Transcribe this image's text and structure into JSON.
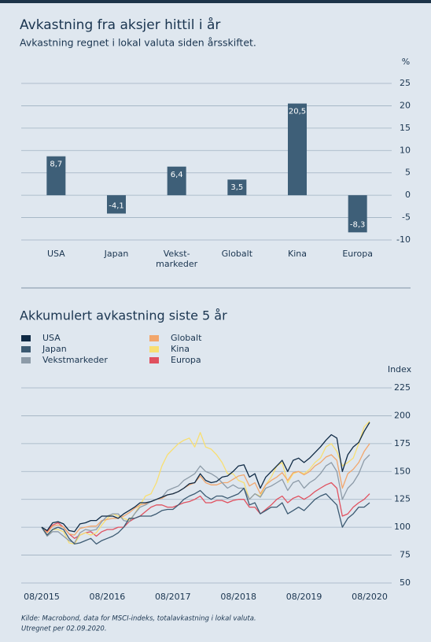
{
  "chart_data": [
    {
      "type": "bar",
      "title": "Avkastning fra aksjer hittil i år",
      "subtitle": "Avkastning regnet i lokal valuta siden årsskiftet.",
      "ylabel": "%",
      "categories": [
        "USA",
        "Japan",
        "Vekst-\nmarkeder",
        "Globalt",
        "Kina",
        "Europa"
      ],
      "values": [
        8.7,
        -4.1,
        6.4,
        3.5,
        20.5,
        -8.3
      ],
      "value_labels": [
        "8,7",
        "-4,1",
        "6,4",
        "3,5",
        "20,5",
        "-8,3"
      ],
      "color": "#3e5f78",
      "ylim": [
        -10,
        25
      ],
      "yticks": [
        -10,
        -5,
        0,
        5,
        10,
        15,
        20,
        25
      ],
      "grid": true
    },
    {
      "type": "line",
      "title": "Akkumulert avkastning siste 5 år",
      "ylabel": "Index",
      "x": [
        "08/2015",
        "09/2015",
        "10/2015",
        "11/2015",
        "12/2015",
        "01/2016",
        "02/2016",
        "03/2016",
        "04/2016",
        "05/2016",
        "06/2016",
        "07/2016",
        "08/2016",
        "09/2016",
        "10/2016",
        "11/2016",
        "12/2016",
        "01/2017",
        "02/2017",
        "03/2017",
        "04/2017",
        "05/2017",
        "06/2017",
        "07/2017",
        "08/2017",
        "09/2017",
        "10/2017",
        "11/2017",
        "12/2017",
        "01/2018",
        "02/2018",
        "03/2018",
        "04/2018",
        "05/2018",
        "06/2018",
        "07/2018",
        "08/2018",
        "09/2018",
        "10/2018",
        "11/2018",
        "12/2018",
        "01/2019",
        "02/2019",
        "03/2019",
        "04/2019",
        "05/2019",
        "06/2019",
        "07/2019",
        "08/2019",
        "09/2019",
        "10/2019",
        "11/2019",
        "12/2019",
        "01/2020",
        "02/2020",
        "03/2020",
        "04/2020",
        "05/2020",
        "06/2020",
        "07/2020",
        "08/2020"
      ],
      "series": [
        {
          "name": "USA",
          "color": "#0f2a45",
          "values": [
            100,
            97,
            104,
            105,
            103,
            97,
            96,
            103,
            104,
            106,
            106,
            110,
            110,
            110,
            108,
            112,
            115,
            118,
            122,
            122,
            123,
            125,
            127,
            129,
            130,
            132,
            135,
            139,
            140,
            148,
            142,
            140,
            141,
            145,
            146,
            150,
            155,
            156,
            145,
            148,
            135,
            145,
            150,
            155,
            160,
            150,
            160,
            162,
            158,
            162,
            167,
            172,
            178,
            183,
            180,
            150,
            165,
            172,
            176,
            186,
            194
          ]
        },
        {
          "name": "Japan",
          "color": "#3c5a72",
          "values": [
            100,
            93,
            98,
            100,
            98,
            90,
            85,
            86,
            88,
            90,
            85,
            88,
            90,
            92,
            95,
            100,
            108,
            108,
            110,
            110,
            110,
            112,
            115,
            116,
            116,
            120,
            125,
            128,
            130,
            133,
            128,
            125,
            128,
            128,
            126,
            128,
            130,
            135,
            120,
            122,
            112,
            115,
            118,
            118,
            122,
            112,
            115,
            118,
            115,
            120,
            125,
            128,
            130,
            125,
            120,
            100,
            108,
            112,
            118,
            118,
            122
          ]
        },
        {
          "name": "Vekstmarkeder",
          "color": "#8d9ba8",
          "values": [
            100,
            92,
            96,
            96,
            92,
            88,
            86,
            95,
            98,
            97,
            98,
            105,
            110,
            112,
            112,
            106,
            105,
            112,
            118,
            120,
            123,
            125,
            127,
            133,
            135,
            137,
            142,
            145,
            148,
            155,
            150,
            148,
            145,
            140,
            135,
            138,
            135,
            135,
            125,
            130,
            127,
            135,
            137,
            140,
            143,
            133,
            140,
            142,
            135,
            140,
            143,
            148,
            155,
            158,
            150,
            125,
            135,
            140,
            148,
            160,
            165
          ]
        },
        {
          "name": "Globalt",
          "color": "#f2a66c",
          "values": [
            100,
            95,
            101,
            102,
            100,
            94,
            93,
            99,
            100,
            101,
            101,
            106,
            107,
            108,
            108,
            110,
            113,
            117,
            120,
            121,
            123,
            125,
            126,
            129,
            130,
            132,
            135,
            138,
            140,
            146,
            140,
            138,
            138,
            140,
            140,
            143,
            146,
            147,
            137,
            140,
            130,
            138,
            142,
            145,
            149,
            142,
            149,
            150,
            147,
            150,
            155,
            158,
            163,
            165,
            160,
            135,
            148,
            152,
            158,
            168,
            175
          ]
        },
        {
          "name": "Kina",
          "color": "#f8df72",
          "values": [
            100,
            92,
            98,
            98,
            96,
            86,
            85,
            93,
            95,
            93,
            95,
            102,
            108,
            112,
            110,
            108,
            106,
            112,
            120,
            128,
            130,
            140,
            155,
            165,
            170,
            175,
            178,
            180,
            172,
            185,
            172,
            170,
            165,
            158,
            148,
            148,
            142,
            140,
            125,
            130,
            128,
            138,
            145,
            155,
            158,
            140,
            148,
            150,
            148,
            152,
            158,
            162,
            172,
            175,
            168,
            155,
            158,
            162,
            175,
            190,
            195
          ]
        },
        {
          "name": "Europa",
          "color": "#e0515f",
          "values": [
            100,
            96,
            102,
            104,
            100,
            94,
            90,
            93,
            95,
            96,
            92,
            96,
            98,
            98,
            100,
            100,
            105,
            108,
            110,
            114,
            118,
            120,
            120,
            118,
            118,
            120,
            122,
            123,
            125,
            128,
            122,
            122,
            124,
            124,
            122,
            124,
            125,
            125,
            118,
            118,
            112,
            116,
            120,
            125,
            128,
            122,
            126,
            128,
            125,
            128,
            132,
            135,
            138,
            140,
            135,
            110,
            112,
            118,
            122,
            125,
            130
          ]
        }
      ],
      "ylim": [
        50,
        225
      ],
      "yticks": [
        50,
        75,
        100,
        125,
        150,
        175,
        200,
        225
      ],
      "xticks": [
        "08/2015",
        "08/2016",
        "08/2017",
        "08/2018",
        "08/2019",
        "08/2020"
      ],
      "grid": true,
      "legend": "top-left",
      "footnote": [
        "Kilde: Macrobond, data for MSCI-indeks, totalavkastning i lokal valuta.",
        "Utregnet per 02.09.2020."
      ]
    }
  ]
}
